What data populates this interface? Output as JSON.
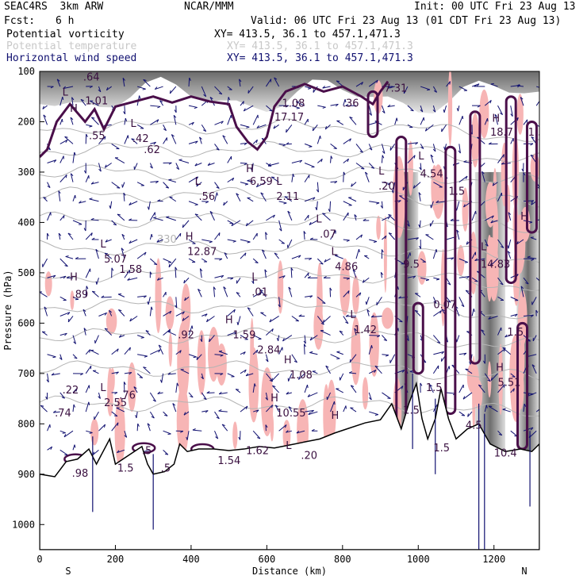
{
  "header": {
    "experiment": "SEAC4RS  3km ARW",
    "center": "NCAR/MMM",
    "init": "Init: 00 UTC Fri 23 Aug 13",
    "fcst_label": "Fcst:",
    "fcst_value": "6 h",
    "valid": "Valid: 06 UTC Fri 23 Aug 13 (01 CDT Fri 23 Aug 13)"
  },
  "legend": [
    {
      "name": "Potential vorticity",
      "xy": "XY= 413.5, 36.1 to 457.1,471.3",
      "color": "#000000"
    },
    {
      "name": "Potential temperature",
      "xy": "XY= 413.5, 36.1 to 457.1,471.3",
      "color": "#c8c8c8"
    },
    {
      "name": "Horizontal wind speed",
      "xy": "XY= 413.5, 36.1 to 457.1,471.3",
      "color": "#101070"
    }
  ],
  "colors": {
    "pv_contour": "#4a0f4a",
    "pv_fill": "#f7b5b5",
    "theta": "#b4b4b4",
    "wind": "#101070",
    "terrain": "#ffffff"
  },
  "chart_data": {
    "type": "cross-section",
    "title": "Potential vorticity / Potential temperature / Horizontal wind speed",
    "xlabel": "Distance (km)",
    "ylabel": "Pressure (hPa)",
    "xlim": [
      0,
      1320
    ],
    "ylim": [
      1050,
      100
    ],
    "x_ticks": [
      0,
      200,
      400,
      600,
      800,
      1000,
      1200
    ],
    "y_ticks": [
      100,
      200,
      300,
      400,
      500,
      600,
      700,
      800,
      900,
      1000
    ],
    "x_end_labels": {
      "left": "S",
      "right": "N"
    },
    "isentrope_label": {
      "value": "330",
      "x": 310,
      "p": 440
    },
    "terrain": [
      {
        "x": 0,
        "p": 900
      },
      {
        "x": 40,
        "p": 905
      },
      {
        "x": 70,
        "p": 875
      },
      {
        "x": 100,
        "p": 870
      },
      {
        "x": 130,
        "p": 850
      },
      {
        "x": 150,
        "p": 880
      },
      {
        "x": 185,
        "p": 830
      },
      {
        "x": 200,
        "p": 880
      },
      {
        "x": 240,
        "p": 860
      },
      {
        "x": 270,
        "p": 845
      },
      {
        "x": 285,
        "p": 880
      },
      {
        "x": 300,
        "p": 900
      },
      {
        "x": 330,
        "p": 895
      },
      {
        "x": 355,
        "p": 880
      },
      {
        "x": 370,
        "p": 840
      },
      {
        "x": 390,
        "p": 855
      },
      {
        "x": 420,
        "p": 850
      },
      {
        "x": 460,
        "p": 850
      },
      {
        "x": 500,
        "p": 853
      },
      {
        "x": 540,
        "p": 850
      },
      {
        "x": 580,
        "p": 845
      },
      {
        "x": 620,
        "p": 848
      },
      {
        "x": 660,
        "p": 842
      },
      {
        "x": 700,
        "p": 836
      },
      {
        "x": 740,
        "p": 830
      },
      {
        "x": 780,
        "p": 818
      },
      {
        "x": 820,
        "p": 808
      },
      {
        "x": 860,
        "p": 798
      },
      {
        "x": 900,
        "p": 792
      },
      {
        "x": 930,
        "p": 760
      },
      {
        "x": 955,
        "p": 810
      },
      {
        "x": 975,
        "p": 760
      },
      {
        "x": 995,
        "p": 720
      },
      {
        "x": 1010,
        "p": 790
      },
      {
        "x": 1025,
        "p": 830
      },
      {
        "x": 1045,
        "p": 790
      },
      {
        "x": 1060,
        "p": 730
      },
      {
        "x": 1080,
        "p": 790
      },
      {
        "x": 1100,
        "p": 830
      },
      {
        "x": 1130,
        "p": 810
      },
      {
        "x": 1160,
        "p": 800
      },
      {
        "x": 1190,
        "p": 840
      },
      {
        "x": 1230,
        "p": 855
      },
      {
        "x": 1270,
        "p": 850
      },
      {
        "x": 1300,
        "p": 855
      },
      {
        "x": 1320,
        "p": 840
      }
    ],
    "tropopause_pv_2": [
      {
        "x": 0,
        "p": 270
      },
      {
        "x": 20,
        "p": 255
      },
      {
        "x": 45,
        "p": 200
      },
      {
        "x": 80,
        "p": 165
      },
      {
        "x": 120,
        "p": 200
      },
      {
        "x": 145,
        "p": 175
      },
      {
        "x": 170,
        "p": 215
      },
      {
        "x": 200,
        "p": 170
      },
      {
        "x": 250,
        "p": 160
      },
      {
        "x": 300,
        "p": 150
      },
      {
        "x": 350,
        "p": 162
      },
      {
        "x": 400,
        "p": 150
      },
      {
        "x": 450,
        "p": 160
      },
      {
        "x": 500,
        "p": 165
      },
      {
        "x": 520,
        "p": 210
      },
      {
        "x": 550,
        "p": 240
      },
      {
        "x": 575,
        "p": 255
      },
      {
        "x": 600,
        "p": 230
      },
      {
        "x": 620,
        "p": 170
      },
      {
        "x": 650,
        "p": 140
      },
      {
        "x": 700,
        "p": 125
      },
      {
        "x": 750,
        "p": 140
      },
      {
        "x": 800,
        "p": 130
      },
      {
        "x": 850,
        "p": 150
      },
      {
        "x": 880,
        "p": 165
      },
      {
        "x": 900,
        "p": 140
      },
      {
        "x": 920,
        "p": 120
      }
    ],
    "labels": [
      {
        "t": "L",
        "x": 60,
        "p": 148
      },
      {
        "t": ".64",
        "x": 115,
        "p": 118
      },
      {
        "t": "H",
        "x": 80,
        "p": 180
      },
      {
        "t": "1.01",
        "x": 120,
        "p": 165
      },
      {
        "t": ".55",
        "x": 130,
        "p": 235
      },
      {
        "t": "L",
        "x": 240,
        "p": 210
      },
      {
        "t": ".42",
        "x": 245,
        "p": 240
      },
      {
        "t": ".62",
        "x": 275,
        "p": 262
      },
      {
        "t": "H",
        "x": 545,
        "p": 300
      },
      {
        "t": "6.59",
        "x": 555,
        "p": 325
      },
      {
        "t": "L",
        "x": 625,
        "p": 325
      },
      {
        "t": "2.11",
        "x": 625,
        "p": 355
      },
      {
        "t": "L",
        "x": 410,
        "p": 325
      },
      {
        "t": ".56",
        "x": 420,
        "p": 355
      },
      {
        "t": "H",
        "x": 385,
        "p": 435
      },
      {
        "t": "12.87",
        "x": 390,
        "p": 465
      },
      {
        "t": "L",
        "x": 160,
        "p": 450
      },
      {
        "t": "5.07",
        "x": 170,
        "p": 480
      },
      {
        "t": "1.58",
        "x": 210,
        "p": 500
      },
      {
        "t": "H",
        "x": 80,
        "p": 515
      },
      {
        "t": ".89",
        "x": 85,
        "p": 550
      },
      {
        "t": "L",
        "x": 730,
        "p": 400
      },
      {
        "t": ".07",
        "x": 740,
        "p": 430
      },
      {
        "t": "L",
        "x": 770,
        "p": 465
      },
      {
        "t": "4.86",
        "x": 780,
        "p": 495
      },
      {
        "t": "L",
        "x": 560,
        "p": 515
      },
      {
        "t": ".01",
        "x": 560,
        "p": 545
      },
      {
        "t": "L",
        "x": 820,
        "p": 590
      },
      {
        "t": "1.42",
        "x": 830,
        "p": 620
      },
      {
        "t": "H",
        "x": 490,
        "p": 600
      },
      {
        "t": "1.59",
        "x": 510,
        "p": 630
      },
      {
        "t": ".92",
        "x": 365,
        "p": 630
      },
      {
        "t": "2.84",
        "x": 575,
        "p": 660
      },
      {
        "t": "H",
        "x": 645,
        "p": 680
      },
      {
        "t": "1.08",
        "x": 660,
        "p": 710
      },
      {
        "t": "H",
        "x": 610,
        "p": 755
      },
      {
        "t": "10.55",
        "x": 625,
        "p": 785
      },
      {
        "t": "L",
        "x": 160,
        "p": 735
      },
      {
        "t": "2.55",
        "x": 170,
        "p": 765
      },
      {
        "t": ".76",
        "x": 210,
        "p": 750
      },
      {
        "t": ".22",
        "x": 60,
        "p": 740
      },
      {
        "t": ".74",
        "x": 40,
        "p": 785
      },
      {
        "t": "H",
        "x": 770,
        "p": 790
      },
      {
        "t": "L",
        "x": 650,
        "p": 850
      },
      {
        "t": ".20",
        "x": 690,
        "p": 870
      },
      {
        "t": "1.54",
        "x": 470,
        "p": 880
      },
      {
        "t": "1.62",
        "x": 545,
        "p": 860
      },
      {
        "t": ".5",
        "x": 270,
        "p": 860
      },
      {
        "t": ".98",
        "x": 85,
        "p": 905
      },
      {
        "t": ".5",
        "x": 320,
        "p": 895
      },
      {
        "t": "1.5",
        "x": 205,
        "p": 895
      },
      {
        "t": "L",
        "x": 1000,
        "p": 275
      },
      {
        "t": "4.54",
        "x": 1005,
        "p": 310
      },
      {
        "t": "L",
        "x": 895,
        "p": 305
      },
      {
        "t": ".20",
        "x": 895,
        "p": 335
      },
      {
        "t": "H",
        "x": 1195,
        "p": 200
      },
      {
        "t": "18.7",
        "x": 1190,
        "p": 228
      },
      {
        "t": "1.5",
        "x": 1080,
        "p": 345
      },
      {
        "t": "1.5",
        "x": 1290,
        "p": 228
      },
      {
        "t": "H",
        "x": 1270,
        "p": 395
      },
      {
        "t": "L",
        "x": 1165,
        "p": 455
      },
      {
        "t": "14.83",
        "x": 1165,
        "p": 490
      },
      {
        "t": "9.5",
        "x": 960,
        "p": 490
      },
      {
        "t": "0.07",
        "x": 1040,
        "p": 570
      },
      {
        "t": "1.5",
        "x": 1235,
        "p": 625
      },
      {
        "t": "H",
        "x": 1205,
        "p": 695
      },
      {
        "t": "5.51",
        "x": 1210,
        "p": 725
      },
      {
        "t": "1.5",
        "x": 1020,
        "p": 735
      },
      {
        "t": "1.5",
        "x": 960,
        "p": 780
      },
      {
        "t": "4.5",
        "x": 1125,
        "p": 810
      },
      {
        "t": "1.5",
        "x": 1040,
        "p": 855
      },
      {
        "t": "10.4",
        "x": 1200,
        "p": 865
      },
      {
        "t": ".36",
        "x": 800,
        "p": 170
      },
      {
        "t": "7.31",
        "x": 910,
        "p": 140
      },
      {
        "t": "1.08",
        "x": 640,
        "p": 170
      },
      {
        "t": "17.17",
        "x": 620,
        "p": 198
      }
    ]
  }
}
